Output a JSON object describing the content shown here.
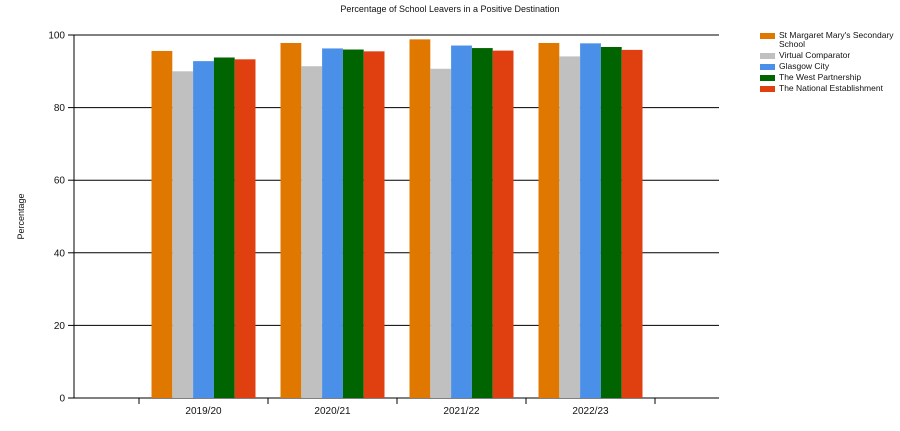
{
  "chart_data": {
    "type": "bar",
    "title": "Percentage of School Leavers in a Positive Destination",
    "xlabel": "",
    "ylabel": "Percentage",
    "ylim": [
      0,
      100
    ],
    "yticks": [
      0,
      20,
      40,
      60,
      80,
      100
    ],
    "grid": true,
    "legend_position": "top-right",
    "categories": [
      "2019/20",
      "2020/21",
      "2021/22",
      "2022/23"
    ],
    "series": [
      {
        "name": "St Margaret Mary's Secondary School",
        "color": "#e07800",
        "values": [
          95.6,
          97.8,
          98.8,
          97.8
        ]
      },
      {
        "name": "Virtual Comparator",
        "color": "#c0c0c0",
        "values": [
          90.0,
          91.4,
          90.7,
          94.1
        ]
      },
      {
        "name": "Glasgow City",
        "color": "#4a90e8",
        "values": [
          92.8,
          96.3,
          97.1,
          97.7
        ]
      },
      {
        "name": "The West Partnership",
        "color": "#006400",
        "values": [
          93.8,
          96.0,
          96.4,
          96.7
        ]
      },
      {
        "name": "The National Establishment",
        "color": "#e04010",
        "values": [
          93.3,
          95.5,
          95.7,
          95.9
        ]
      }
    ]
  }
}
